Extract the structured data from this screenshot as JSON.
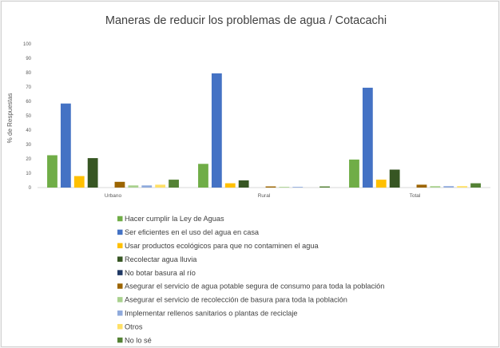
{
  "chart_data": {
    "type": "bar",
    "title": "Maneras de reducir los problemas de agua / Cotacachi",
    "xlabel": "",
    "ylabel": "% de Respuestas",
    "ylim": [
      0,
      100
    ],
    "yticks": [
      "0",
      "10",
      "20",
      "30",
      "40",
      "50",
      "60",
      "70",
      "80",
      "90",
      "100"
    ],
    "grid": false,
    "legend_position": "bottom",
    "categories": [
      "Urbano",
      "Rural",
      "Total"
    ],
    "series": [
      {
        "name": "Hacer cumplir la Ley de Aguas",
        "color": "#70ad47",
        "values": [
          22.5,
          16.5,
          19.5
        ]
      },
      {
        "name": "Ser eficientes en el uso del agua en casa",
        "color": "#4472c4",
        "values": [
          58.5,
          79.5,
          69.5
        ]
      },
      {
        "name": "Usar productos ecológicos para que no contaminen el agua",
        "color": "#ffc000",
        "values": [
          8.0,
          3.0,
          5.5
        ]
      },
      {
        "name": "Recolectar agua lluvia",
        "color": "#375623",
        "values": [
          20.5,
          5.0,
          12.5
        ]
      },
      {
        "name": "No botar basura al río",
        "color": "#203864",
        "values": [
          0,
          0,
          0
        ]
      },
      {
        "name": "Asegurar el servicio de agua potable segura de consumo para toda la población",
        "color": "#9c6500",
        "values": [
          4.0,
          0.8,
          2.0
        ]
      },
      {
        "name": "Asegurar el servicio de recolección de basura para toda la población",
        "color": "#a9d18e",
        "values": [
          1.5,
          0.5,
          1.0
        ]
      },
      {
        "name": "Implementar rellenos sanitarios o plantas de reciclaje",
        "color": "#8faadc",
        "values": [
          1.5,
          0.5,
          1.0
        ]
      },
      {
        "name": "Otros",
        "color": "#ffe066",
        "values": [
          2.0,
          0,
          1.0
        ]
      },
      {
        "name": "No lo sé",
        "color": "#548235",
        "values": [
          5.5,
          0.8,
          3.0
        ]
      }
    ]
  }
}
